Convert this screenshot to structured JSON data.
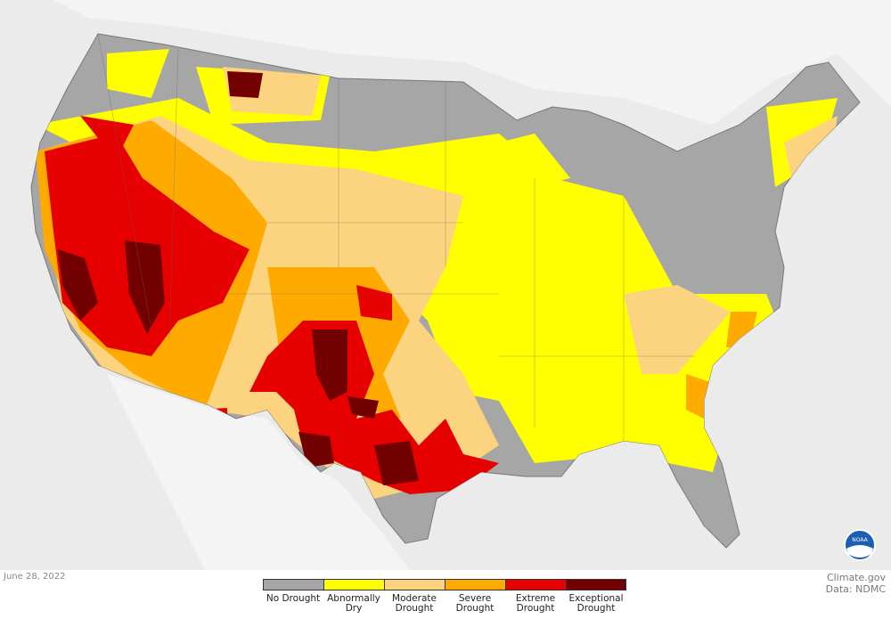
{
  "map": {
    "date": "June 28, 2022",
    "credit": [
      "Climate.gov",
      "Data: NDMC"
    ],
    "logo": "NOAA",
    "legend": [
      {
        "label": "No Drought",
        "color": "#a6a6a6"
      },
      {
        "label": "Abnormally Dry",
        "color": "#ffff00"
      },
      {
        "label": "Moderate Drought",
        "color": "#fcd37f"
      },
      {
        "label": "Severe Drought",
        "color": "#ffaa00"
      },
      {
        "label": "Extreme Drought",
        "color": "#e60000"
      },
      {
        "label": "Exceptional Drought",
        "color": "#730000"
      }
    ]
  }
}
